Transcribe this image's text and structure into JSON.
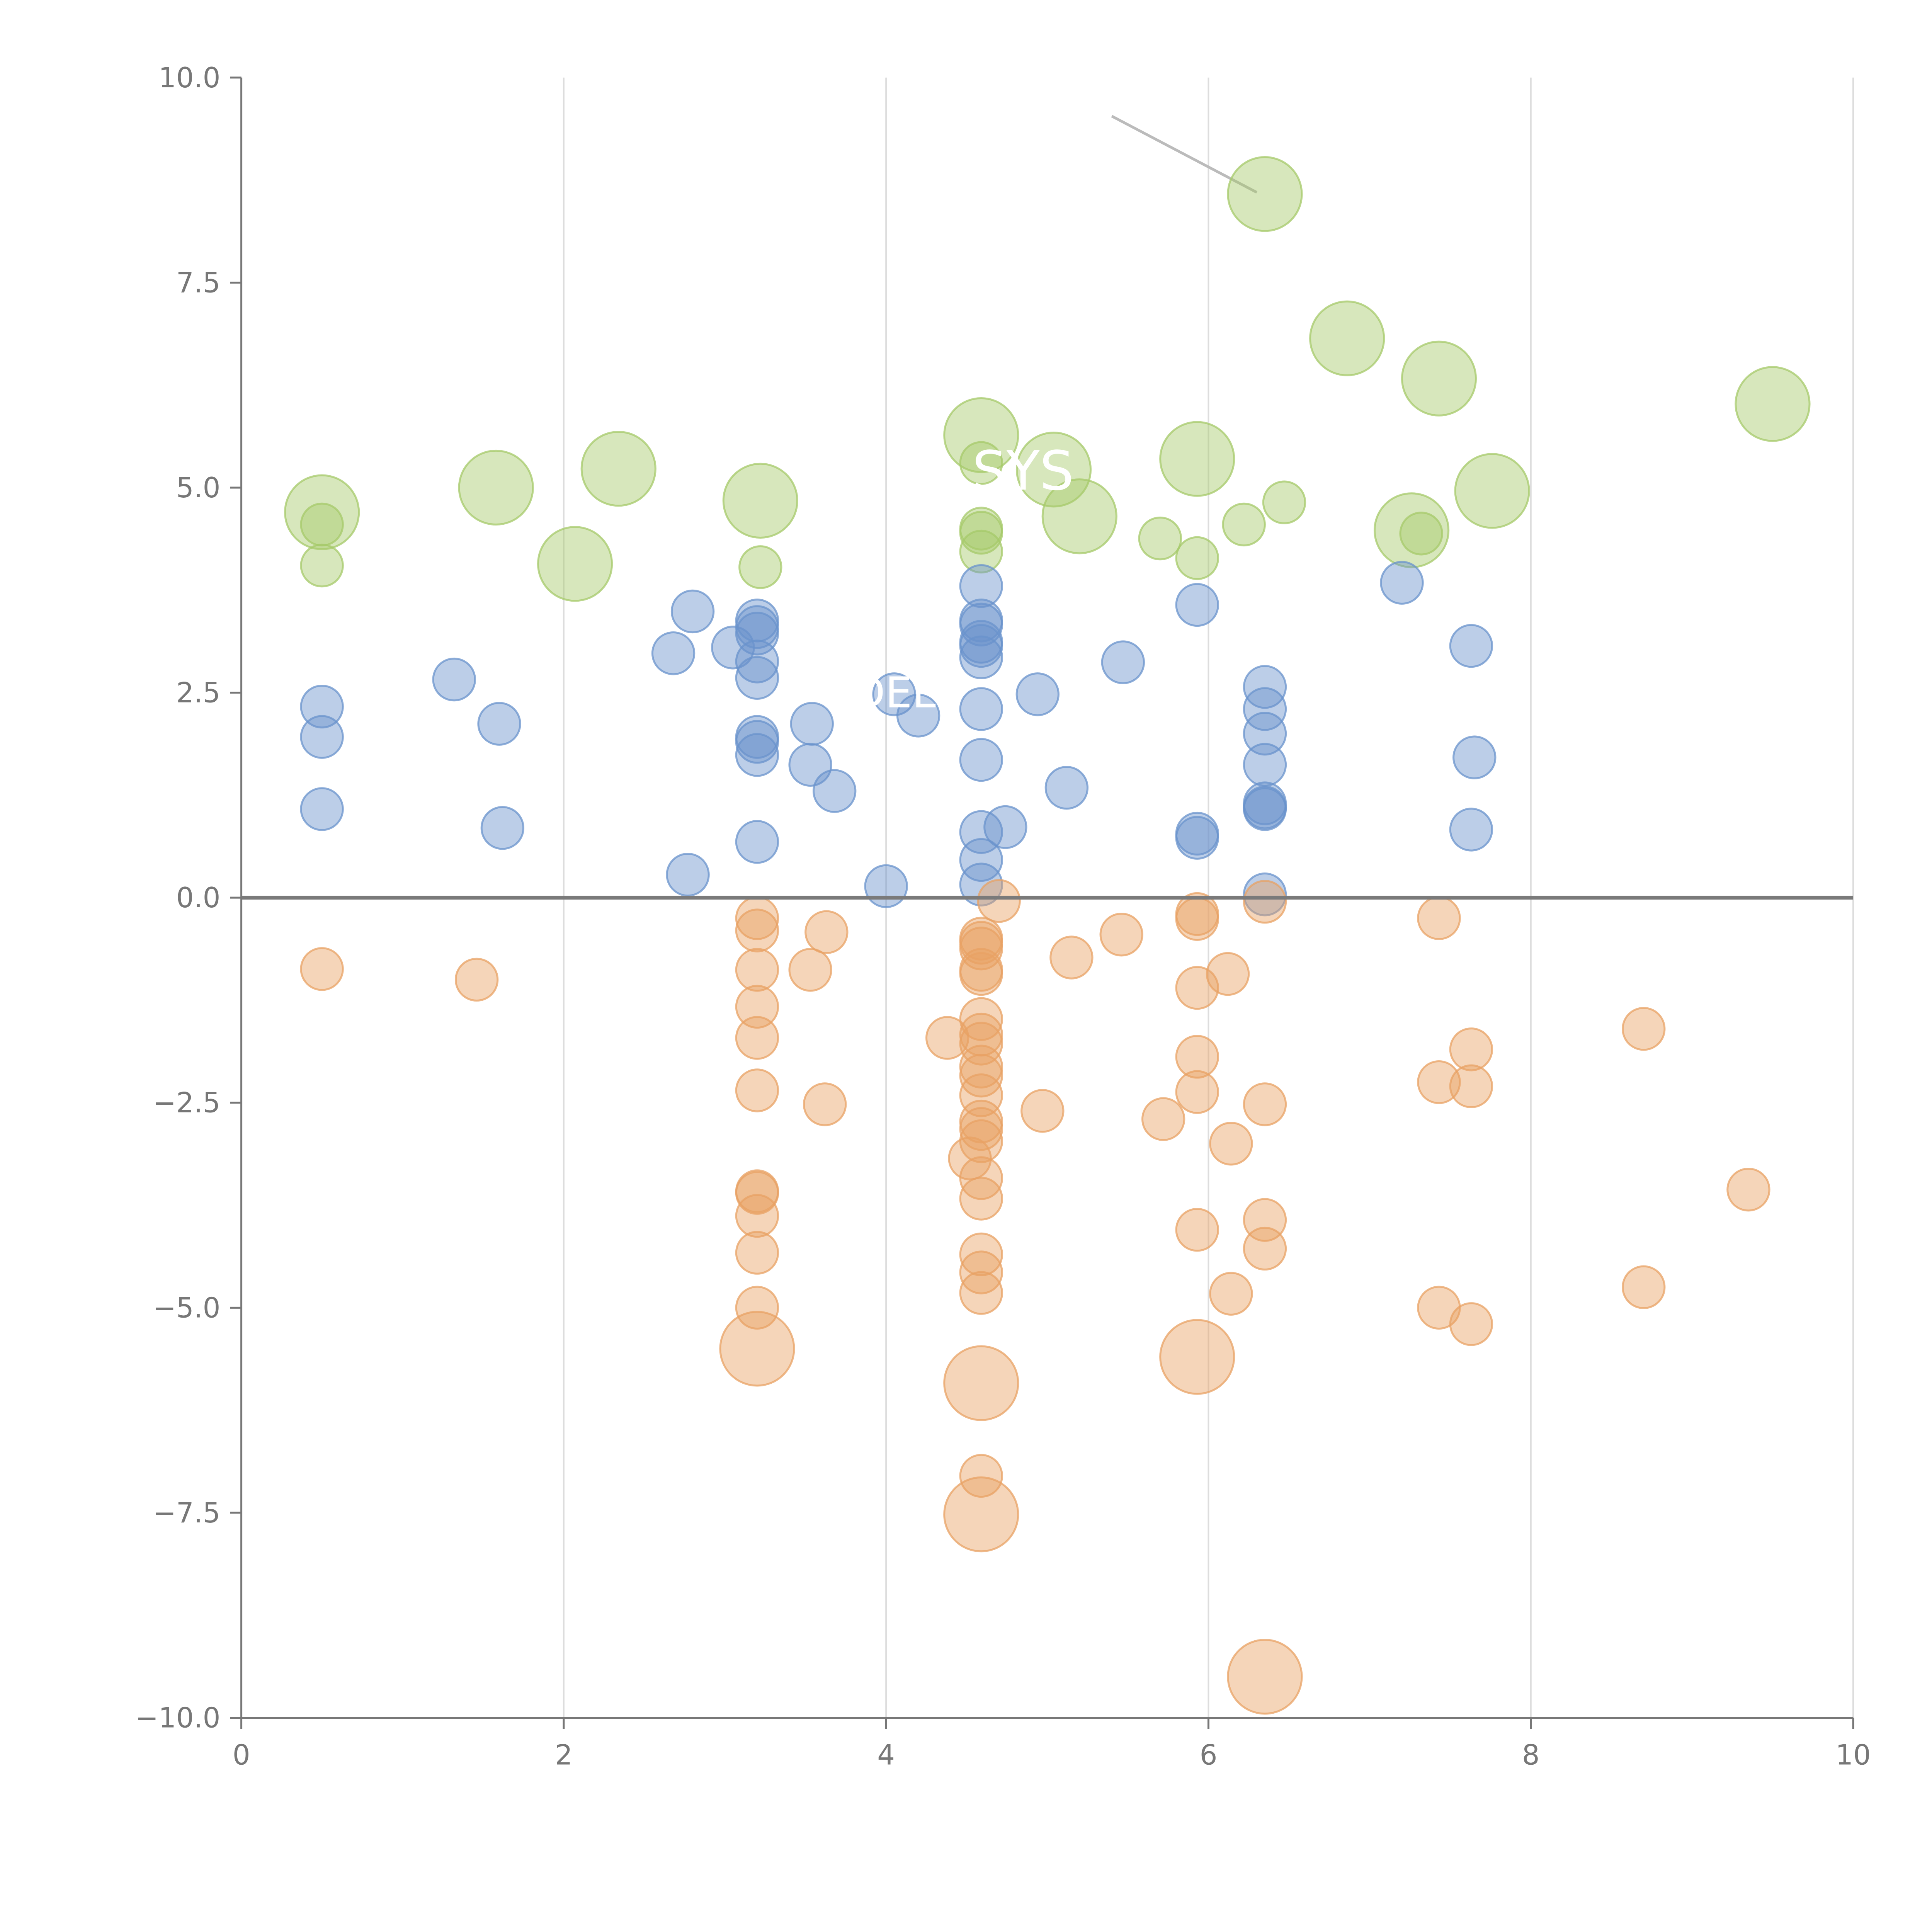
{
  "chart_data": {
    "type": "scatter",
    "title": "",
    "xlabel": "",
    "ylabel": "",
    "xlim": [
      0,
      10
    ],
    "ylim": [
      -10,
      10
    ],
    "grid": {
      "x": true,
      "y": false
    },
    "zero_line": true,
    "x_ticks": [
      0,
      2,
      4,
      6,
      8,
      10
    ],
    "x_tick_labels": [
      "0",
      "2",
      "4",
      "6",
      "8",
      "10"
    ],
    "y_ticks": [
      -10,
      -7.5,
      -5,
      -2.5,
      0,
      2.5,
      5,
      7.5,
      10
    ],
    "y_tick_labels": [
      "−10.0",
      "−7.5",
      "−5.0",
      "−2.5",
      "0.0",
      "2.5",
      "5.0",
      "7.5",
      "10.0"
    ],
    "colors": {
      "green": "#a6c96a",
      "blue": "#6a93cc",
      "orange": "#e8a164",
      "grid": "#dddddd",
      "axis": "#777777",
      "zero": "#7a7a7a",
      "connector": "#bbbbbb"
    },
    "annotations": [
      {
        "text": "SYS",
        "x": 4.85,
        "y": 5.2
      },
      {
        "text": "DEL",
        "x": 4.05,
        "y": 2.5
      }
    ],
    "series": [
      {
        "name": "green",
        "color_key": "green",
        "points": [
          {
            "x": 0.5,
            "y": 4.7,
            "s": 3
          },
          {
            "x": 1.58,
            "y": 5.0,
            "s": 3
          },
          {
            "x": 2.07,
            "y": 4.07,
            "s": 3
          },
          {
            "x": 2.34,
            "y": 5.23,
            "s": 3
          },
          {
            "x": 3.22,
            "y": 4.84,
            "s": 3
          },
          {
            "x": 4.59,
            "y": 5.64,
            "s": 3
          },
          {
            "x": 5.04,
            "y": 5.22,
            "s": 3
          },
          {
            "x": 5.2,
            "y": 4.65,
            "s": 3
          },
          {
            "x": 5.93,
            "y": 5.35,
            "s": 3
          },
          {
            "x": 6.35,
            "y": 8.58,
            "s": 3
          },
          {
            "x": 6.86,
            "y": 6.82,
            "s": 3
          },
          {
            "x": 7.26,
            "y": 4.48,
            "s": 3
          },
          {
            "x": 7.43,
            "y": 6.33,
            "s": 3
          },
          {
            "x": 7.76,
            "y": 4.96,
            "s": 3
          },
          {
            "x": 9.5,
            "y": 6.02,
            "s": 3
          },
          {
            "x": 0.5,
            "y": 4.55,
            "s": 1
          },
          {
            "x": 0.5,
            "y": 4.05,
            "s": 1
          },
          {
            "x": 3.22,
            "y": 4.03,
            "s": 1
          },
          {
            "x": 4.59,
            "y": 5.3,
            "s": 1
          },
          {
            "x": 4.59,
            "y": 4.5,
            "s": 1
          },
          {
            "x": 4.59,
            "y": 4.45,
            "s": 1
          },
          {
            "x": 4.59,
            "y": 4.22,
            "s": 1
          },
          {
            "x": 5.7,
            "y": 4.38,
            "s": 1
          },
          {
            "x": 5.93,
            "y": 4.14,
            "s": 1
          },
          {
            "x": 6.22,
            "y": 4.55,
            "s": 1
          },
          {
            "x": 6.47,
            "y": 4.82,
            "s": 1
          },
          {
            "x": 7.32,
            "y": 4.44,
            "s": 1
          }
        ]
      },
      {
        "name": "blue",
        "color_key": "blue",
        "points": [
          {
            "x": 0.5,
            "y": 2.33,
            "s": 1
          },
          {
            "x": 0.5,
            "y": 1.96,
            "s": 1
          },
          {
            "x": 0.5,
            "y": 1.08,
            "s": 1
          },
          {
            "x": 1.32,
            "y": 2.66,
            "s": 1
          },
          {
            "x": 1.6,
            "y": 2.12,
            "s": 1
          },
          {
            "x": 1.62,
            "y": 0.85,
            "s": 1
          },
          {
            "x": 2.68,
            "y": 2.98,
            "s": 1
          },
          {
            "x": 2.8,
            "y": 3.49,
            "s": 1
          },
          {
            "x": 2.77,
            "y": 0.28,
            "s": 1
          },
          {
            "x": 3.05,
            "y": 3.05,
            "s": 1
          },
          {
            "x": 3.2,
            "y": 3.38,
            "s": 1
          },
          {
            "x": 3.2,
            "y": 3.3,
            "s": 1
          },
          {
            "x": 3.2,
            "y": 3.22,
            "s": 1
          },
          {
            "x": 3.2,
            "y": 2.88,
            "s": 1
          },
          {
            "x": 3.2,
            "y": 2.68,
            "s": 1
          },
          {
            "x": 3.2,
            "y": 1.96,
            "s": 1
          },
          {
            "x": 3.2,
            "y": 1.9,
            "s": 1
          },
          {
            "x": 3.2,
            "y": 1.74,
            "s": 1
          },
          {
            "x": 3.2,
            "y": 0.68,
            "s": 1
          },
          {
            "x": 3.54,
            "y": 2.12,
            "s": 1
          },
          {
            "x": 3.53,
            "y": 1.62,
            "s": 1
          },
          {
            "x": 3.68,
            "y": 1.3,
            "s": 1
          },
          {
            "x": 4.0,
            "y": 0.14,
            "s": 1
          },
          {
            "x": 4.05,
            "y": 2.48,
            "s": 1
          },
          {
            "x": 4.2,
            "y": 2.22,
            "s": 1
          },
          {
            "x": 4.59,
            "y": 3.8,
            "s": 1
          },
          {
            "x": 4.59,
            "y": 3.38,
            "s": 1
          },
          {
            "x": 4.59,
            "y": 3.33,
            "s": 1
          },
          {
            "x": 4.59,
            "y": 3.12,
            "s": 1
          },
          {
            "x": 4.59,
            "y": 3.07,
            "s": 1
          },
          {
            "x": 4.59,
            "y": 2.93,
            "s": 1
          },
          {
            "x": 4.59,
            "y": 2.3,
            "s": 1
          },
          {
            "x": 4.59,
            "y": 1.68,
            "s": 1
          },
          {
            "x": 4.59,
            "y": 0.8,
            "s": 1
          },
          {
            "x": 4.59,
            "y": 0.46,
            "s": 1
          },
          {
            "x": 4.59,
            "y": 0.16,
            "s": 1
          },
          {
            "x": 4.74,
            "y": 0.86,
            "s": 1
          },
          {
            "x": 4.94,
            "y": 2.48,
            "s": 1
          },
          {
            "x": 5.12,
            "y": 1.34,
            "s": 1
          },
          {
            "x": 5.47,
            "y": 2.87,
            "s": 1
          },
          {
            "x": 5.93,
            "y": 3.57,
            "s": 1
          },
          {
            "x": 5.93,
            "y": 0.78,
            "s": 1
          },
          {
            "x": 5.93,
            "y": 0.73,
            "s": 1
          },
          {
            "x": 6.35,
            "y": 2.57,
            "s": 1
          },
          {
            "x": 6.35,
            "y": 2.3,
            "s": 1
          },
          {
            "x": 6.35,
            "y": 2.0,
            "s": 1
          },
          {
            "x": 6.35,
            "y": 1.62,
            "s": 1
          },
          {
            "x": 6.35,
            "y": 1.15,
            "s": 1
          },
          {
            "x": 6.35,
            "y": 1.1,
            "s": 1
          },
          {
            "x": 6.35,
            "y": 1.08,
            "s": 1
          },
          {
            "x": 6.35,
            "y": 0.04,
            "s": 1
          },
          {
            "x": 7.2,
            "y": 3.84,
            "s": 1
          },
          {
            "x": 7.63,
            "y": 3.07,
            "s": 1
          },
          {
            "x": 7.65,
            "y": 1.71,
            "s": 1
          },
          {
            "x": 7.63,
            "y": 0.83,
            "s": 1
          }
        ]
      },
      {
        "name": "orange",
        "color_key": "orange",
        "points": [
          {
            "x": 0.5,
            "y": -0.87,
            "s": 1
          },
          {
            "x": 1.46,
            "y": -1.0,
            "s": 1
          },
          {
            "x": 3.2,
            "y": -0.25,
            "s": 1
          },
          {
            "x": 3.2,
            "y": -0.4,
            "s": 1
          },
          {
            "x": 3.2,
            "y": -0.88,
            "s": 1
          },
          {
            "x": 3.2,
            "y": -1.33,
            "s": 1
          },
          {
            "x": 3.2,
            "y": -1.71,
            "s": 1
          },
          {
            "x": 3.2,
            "y": -2.35,
            "s": 1
          },
          {
            "x": 3.2,
            "y": -3.58,
            "s": 1
          },
          {
            "x": 3.2,
            "y": -3.6,
            "s": 1
          },
          {
            "x": 3.2,
            "y": -3.88,
            "s": 1
          },
          {
            "x": 3.2,
            "y": -4.33,
            "s": 1
          },
          {
            "x": 3.2,
            "y": -5.0,
            "s": 1
          },
          {
            "x": 3.2,
            "y": -5.5,
            "s": 3
          },
          {
            "x": 3.53,
            "y": -0.88,
            "s": 1
          },
          {
            "x": 3.63,
            "y": -0.42,
            "s": 1
          },
          {
            "x": 3.62,
            "y": -2.52,
            "s": 1
          },
          {
            "x": 4.38,
            "y": -1.71,
            "s": 1
          },
          {
            "x": 4.52,
            "y": -3.18,
            "s": 1
          },
          {
            "x": 4.59,
            "y": -0.5,
            "s": 1
          },
          {
            "x": 4.59,
            "y": -0.55,
            "s": 1
          },
          {
            "x": 4.59,
            "y": -0.62,
            "s": 1
          },
          {
            "x": 4.59,
            "y": -0.88,
            "s": 1
          },
          {
            "x": 4.59,
            "y": -0.93,
            "s": 1
          },
          {
            "x": 4.59,
            "y": -1.48,
            "s": 1
          },
          {
            "x": 4.59,
            "y": -1.67,
            "s": 1
          },
          {
            "x": 4.59,
            "y": -1.78,
            "s": 1
          },
          {
            "x": 4.59,
            "y": -2.06,
            "s": 1
          },
          {
            "x": 4.59,
            "y": -2.17,
            "s": 1
          },
          {
            "x": 4.59,
            "y": -2.41,
            "s": 1
          },
          {
            "x": 4.59,
            "y": -2.73,
            "s": 1
          },
          {
            "x": 4.59,
            "y": -2.82,
            "s": 1
          },
          {
            "x": 4.59,
            "y": -2.97,
            "s": 1
          },
          {
            "x": 4.59,
            "y": -3.42,
            "s": 1
          },
          {
            "x": 4.59,
            "y": -3.67,
            "s": 1
          },
          {
            "x": 4.59,
            "y": -4.35,
            "s": 1
          },
          {
            "x": 4.59,
            "y": -4.57,
            "s": 1
          },
          {
            "x": 4.59,
            "y": -4.82,
            "s": 1
          },
          {
            "x": 4.59,
            "y": -5.92,
            "s": 3
          },
          {
            "x": 4.59,
            "y": -7.05,
            "s": 1
          },
          {
            "x": 4.59,
            "y": -7.52,
            "s": 3
          },
          {
            "x": 4.7,
            "y": -0.04,
            "s": 1
          },
          {
            "x": 4.97,
            "y": -2.6,
            "s": 1
          },
          {
            "x": 5.15,
            "y": -0.73,
            "s": 1
          },
          {
            "x": 5.46,
            "y": -0.45,
            "s": 1
          },
          {
            "x": 5.72,
            "y": -2.7,
            "s": 1
          },
          {
            "x": 5.93,
            "y": -0.2,
            "s": 1
          },
          {
            "x": 5.93,
            "y": -0.26,
            "s": 1
          },
          {
            "x": 5.93,
            "y": -1.1,
            "s": 1
          },
          {
            "x": 5.93,
            "y": -1.94,
            "s": 1
          },
          {
            "x": 5.93,
            "y": -2.37,
            "s": 1
          },
          {
            "x": 5.93,
            "y": -4.05,
            "s": 1
          },
          {
            "x": 5.93,
            "y": -5.6,
            "s": 3
          },
          {
            "x": 6.12,
            "y": -0.93,
            "s": 1
          },
          {
            "x": 6.14,
            "y": -3.0,
            "s": 1
          },
          {
            "x": 6.14,
            "y": -4.83,
            "s": 1
          },
          {
            "x": 6.35,
            "y": -0.05,
            "s": 1
          },
          {
            "x": 6.35,
            "y": -2.52,
            "s": 1
          },
          {
            "x": 6.35,
            "y": -3.93,
            "s": 1
          },
          {
            "x": 6.35,
            "y": -4.28,
            "s": 1
          },
          {
            "x": 6.35,
            "y": -9.5,
            "s": 3
          },
          {
            "x": 7.43,
            "y": -0.25,
            "s": 1
          },
          {
            "x": 7.43,
            "y": -2.25,
            "s": 1
          },
          {
            "x": 7.43,
            "y": -5.0,
            "s": 1
          },
          {
            "x": 7.63,
            "y": -1.85,
            "s": 1
          },
          {
            "x": 7.63,
            "y": -2.3,
            "s": 1
          },
          {
            "x": 7.63,
            "y": -5.2,
            "s": 1
          },
          {
            "x": 8.7,
            "y": -1.6,
            "s": 1
          },
          {
            "x": 8.7,
            "y": -4.75,
            "s": 1
          },
          {
            "x": 9.35,
            "y": -3.56,
            "s": 1
          }
        ]
      }
    ]
  }
}
